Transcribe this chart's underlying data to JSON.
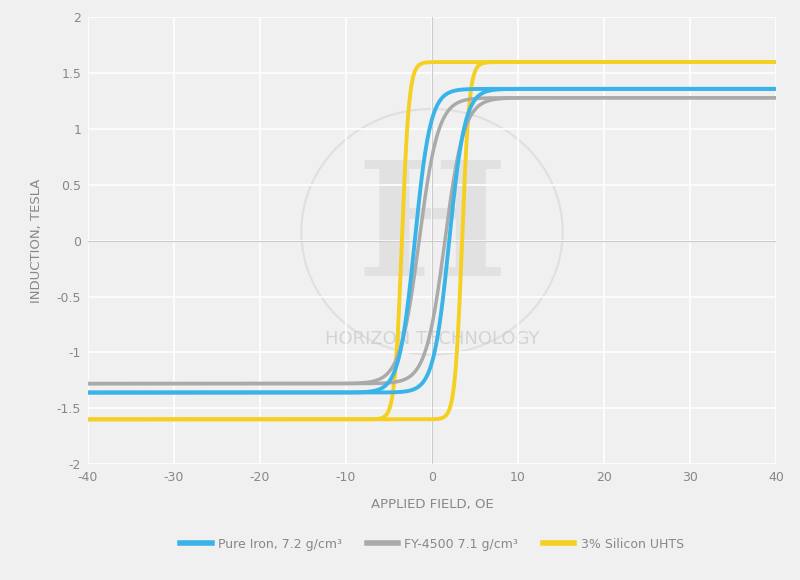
{
  "title": "",
  "xlabel": "APPLIED FIELD, OE",
  "ylabel": "INDUCTION, TESLA",
  "xlim": [
    -40,
    40
  ],
  "ylim": [
    -2,
    2
  ],
  "xticks": [
    -40,
    -30,
    -20,
    -10,
    0,
    10,
    20,
    30,
    40
  ],
  "yticks": [
    -2,
    -1.5,
    -1,
    -0.5,
    0,
    0.5,
    1,
    1.5,
    2
  ],
  "background_color": "#f0f0f0",
  "grid_color": "#ffffff",
  "colors": {
    "pure_iron": "#3ab4e8",
    "fy4500": "#aaaaaa",
    "silicon": "#f5d020"
  },
  "line_widths": {
    "pure_iron": 2.8,
    "fy4500": 2.5,
    "silicon": 2.8
  },
  "legend_labels": [
    "Pure Iron, 7.2 g/cm³",
    "FY-4500 7.1 g/cm³",
    "3% Silicon UHTS"
  ],
  "watermark_text": "HORIZON TECHNOLOGY",
  "watermark_color": "#cccccc",
  "curve_params": {
    "pure_iron": {
      "Bsat": 1.36,
      "Hc": 2.0,
      "sharpness": 0.55
    },
    "fy4500": {
      "Bsat": 1.28,
      "Hc": 1.5,
      "sharpness": 0.45
    },
    "silicon": {
      "Bsat": 1.6,
      "Hc": 3.5,
      "sharpness": 1.2
    }
  }
}
